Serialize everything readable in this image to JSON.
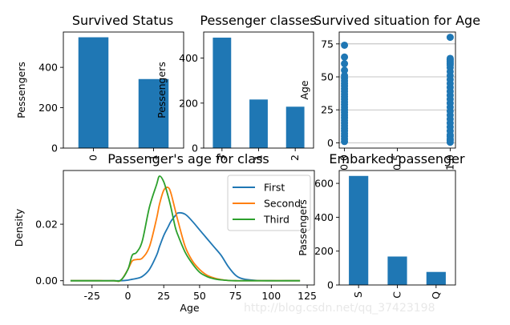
{
  "watermark": "http://blog.csdn.net/qq_37423198",
  "chart_data": [
    {
      "type": "bar",
      "title": "Survived Status",
      "xlabel": "",
      "ylabel": "Pessengers",
      "categories": [
        "0",
        "1"
      ],
      "values": [
        549,
        342
      ],
      "ylim": [
        0,
        575
      ],
      "yticks": [
        0,
        200,
        400
      ],
      "color": "#1f77b4"
    },
    {
      "type": "bar",
      "title": "Pessenger classes",
      "xlabel": "",
      "ylabel": "Pessengers",
      "categories": [
        "3",
        "1",
        "2"
      ],
      "values": [
        491,
        216,
        184
      ],
      "ylim": [
        0,
        516
      ],
      "yticks": [
        0,
        200,
        400
      ],
      "color": "#1f77b4"
    },
    {
      "type": "scatter",
      "title": "Survived situation for Age",
      "xlabel": "",
      "ylabel": "Age",
      "xticks": [
        0.0,
        0.5,
        1.0
      ],
      "yticks": [
        0,
        25,
        50,
        75
      ],
      "xlim": [
        -0.05,
        1.05
      ],
      "ylim": [
        -4,
        84
      ],
      "grid": "horizontal",
      "x": [
        0,
        0,
        0,
        0,
        0,
        0,
        0,
        0,
        0,
        0,
        0,
        0,
        0,
        0,
        0,
        0,
        0,
        0,
        0,
        0,
        0,
        0,
        0,
        0,
        0,
        0,
        0,
        0,
        0,
        0,
        1,
        1,
        1,
        1,
        1,
        1,
        1,
        1,
        1,
        1,
        1,
        1,
        1,
        1,
        1,
        1,
        1,
        1,
        1,
        1,
        1,
        1,
        1,
        1,
        1,
        1,
        1,
        1,
        1
      ],
      "y": [
        1,
        3,
        5,
        7,
        9,
        11,
        13,
        15,
        17,
        19,
        21,
        23,
        25,
        27,
        29,
        31,
        33,
        35,
        37,
        39,
        41,
        43,
        45,
        47,
        49,
        51,
        55,
        60,
        65,
        74,
        0.4,
        3,
        6,
        9,
        12,
        15,
        18,
        21,
        24,
        27,
        30,
        33,
        36,
        39,
        42,
        45,
        48,
        51,
        54,
        57,
        59,
        60,
        61,
        62,
        63,
        64,
        80,
        5,
        2
      ],
      "color": "#1f77b4"
    },
    {
      "type": "line",
      "title": "Passenger's age for class",
      "xlabel": "Age",
      "ylabel": "Density",
      "xticks": [
        -25,
        0,
        25,
        50,
        75,
        100,
        125
      ],
      "yticks": [
        0.0,
        0.02
      ],
      "ytick_labels": [
        "0.00",
        "0.02"
      ],
      "xlim": [
        -45,
        130
      ],
      "ylim": [
        -0.0015,
        0.039
      ],
      "legend": "top-right",
      "x": [
        -40,
        -30,
        -20,
        -10,
        -5,
        0,
        3,
        6,
        10,
        15,
        20,
        22,
        25,
        28,
        30,
        33,
        35,
        40,
        45,
        50,
        55,
        60,
        65,
        70,
        75,
        80,
        90,
        100,
        110,
        120
      ],
      "series": [
        {
          "name": "First",
          "color": "#1f77b4",
          "values": [
            0,
            0,
            0,
            0,
            0,
            0.0002,
            0.0005,
            0.0008,
            0.0015,
            0.004,
            0.009,
            0.012,
            0.016,
            0.019,
            0.021,
            0.023,
            0.024,
            0.0235,
            0.021,
            0.018,
            0.015,
            0.012,
            0.009,
            0.005,
            0.002,
            0.0007,
            0.0001,
            0,
            0,
            0
          ]
        },
        {
          "name": "Second",
          "color": "#ff7f0e",
          "values": [
            0,
            0,
            0,
            0,
            0.0001,
            0.004,
            0.007,
            0.0075,
            0.008,
            0.012,
            0.022,
            0.027,
            0.032,
            0.033,
            0.031,
            0.025,
            0.021,
            0.012,
            0.007,
            0.004,
            0.002,
            0.001,
            0.0004,
            0.0001,
            0,
            0,
            0,
            0,
            0,
            0
          ]
        },
        {
          "name": "Third",
          "color": "#2ca02c",
          "values": [
            0,
            0,
            0,
            0,
            0.0002,
            0.004,
            0.009,
            0.01,
            0.014,
            0.026,
            0.034,
            0.037,
            0.035,
            0.03,
            0.026,
            0.019,
            0.016,
            0.01,
            0.006,
            0.003,
            0.0015,
            0.0007,
            0.0003,
            0.0001,
            0,
            0,
            0,
            0,
            0,
            0
          ]
        }
      ]
    },
    {
      "type": "bar",
      "title": "Embarked passenger",
      "xlabel": "",
      "ylabel": "Passengers",
      "categories": [
        "S",
        "C",
        "Q"
      ],
      "values": [
        644,
        168,
        77
      ],
      "ylim": [
        0,
        676
      ],
      "yticks": [
        0,
        200,
        400,
        600
      ],
      "color": "#1f77b4"
    }
  ]
}
